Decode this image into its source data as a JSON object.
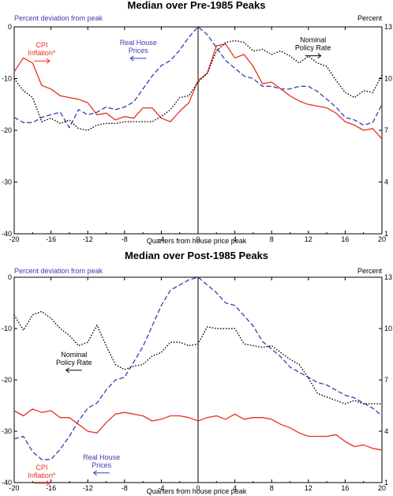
{
  "chart_data": [
    {
      "type": "line",
      "title": "Median over Pre-1985 Peaks",
      "xlabel": "Quarters from house price peak",
      "ylabel_left": "Percent deviation from peak",
      "ylabel_right": "Percent",
      "xlim": [
        -20,
        20
      ],
      "ylim_left": [
        -40,
        0
      ],
      "ylim_right": [
        1,
        13
      ],
      "x_ticks": [
        -20,
        -16,
        -12,
        -8,
        -4,
        0,
        4,
        8,
        12,
        16,
        20
      ],
      "y_ticks_left": [
        0,
        -10,
        -20,
        -30,
        -40
      ],
      "y_ticks_right": [
        13,
        10,
        7,
        4,
        1
      ],
      "vline_x": 0,
      "series": [
        {
          "name": "Real House Prices",
          "axis": "left",
          "style": "dashed",
          "color": "#3b3bb3",
          "x": [
            -20,
            -19,
            -18,
            -17,
            -16,
            -15,
            -14,
            -13,
            -12,
            -11,
            -10,
            -9,
            -8,
            -7,
            -6,
            -5,
            -4,
            -3,
            -2,
            -1,
            0,
            1,
            2,
            3,
            4,
            5,
            6,
            7,
            8,
            9,
            10,
            11,
            12,
            13,
            14,
            15,
            16,
            17,
            18,
            19,
            20
          ],
          "y": [
            -17.5,
            -18.5,
            -18.5,
            -17.5,
            -17.0,
            -16.5,
            -19.5,
            -16.0,
            -17.0,
            -16.5,
            -15.5,
            -16.0,
            -15.5,
            -14.5,
            -12.0,
            -9.5,
            -7.5,
            -6.5,
            -4.5,
            -2.0,
            0.0,
            -1.5,
            -4.0,
            -6.5,
            -8.0,
            -9.5,
            -10.0,
            -11.5,
            -11.5,
            -12.0,
            -12.0,
            -11.5,
            -11.5,
            -12.5,
            -14.0,
            -15.5,
            -17.5,
            -18.0,
            -19.0,
            -18.5,
            -15.0
          ]
        },
        {
          "name": "CPI Inflation*",
          "axis": "right",
          "style": "solid",
          "color": "#e8321e",
          "x": [
            -20,
            -19,
            -18,
            -17,
            -16,
            -15,
            -14,
            -13,
            -12,
            -11,
            -10,
            -9,
            -8,
            -7,
            -6,
            -5,
            -4,
            -3,
            -2,
            -1,
            0,
            1,
            2,
            3,
            4,
            5,
            6,
            7,
            8,
            9,
            10,
            11,
            12,
            13,
            14,
            15,
            16,
            17,
            18,
            19,
            20
          ],
          "y": [
            10.4,
            11.2,
            10.9,
            9.6,
            9.4,
            9.0,
            8.9,
            8.8,
            8.6,
            7.9,
            8.0,
            7.6,
            7.8,
            7.7,
            8.3,
            8.3,
            7.7,
            7.5,
            8.1,
            8.6,
            9.9,
            10.3,
            11.9,
            12.0,
            11.2,
            11.4,
            10.7,
            9.7,
            9.8,
            9.4,
            9.0,
            8.7,
            8.5,
            8.4,
            8.3,
            8.0,
            7.5,
            7.3,
            7.0,
            7.1,
            6.5
          ]
        },
        {
          "name": "Nominal Policy Rate",
          "axis": "right",
          "style": "dotted",
          "color": "#000000",
          "x": [
            -20,
            -19,
            -18,
            -17,
            -16,
            -15,
            -14,
            -13,
            -12,
            -11,
            -10,
            -9,
            -8,
            -7,
            -6,
            -5,
            -4,
            -3,
            -2,
            -1,
            0,
            1,
            2,
            3,
            4,
            5,
            6,
            7,
            8,
            9,
            10,
            11,
            12,
            13,
            14,
            15,
            16,
            17,
            18,
            19,
            20
          ],
          "y": [
            10.0,
            9.3,
            8.9,
            7.5,
            7.7,
            7.4,
            7.6,
            7.1,
            7.0,
            7.3,
            7.4,
            7.4,
            7.5,
            7.5,
            7.5,
            7.5,
            7.8,
            8.2,
            8.9,
            9.0,
            9.8,
            10.3,
            11.6,
            12.1,
            12.2,
            12.1,
            11.6,
            11.7,
            11.4,
            11.6,
            11.3,
            10.9,
            11.3,
            10.9,
            10.7,
            9.9,
            9.2,
            8.9,
            9.3,
            9.2,
            10.2
          ]
        }
      ],
      "annotations": [
        {
          "text_lines": [
            "CPI",
            "Inflation*"
          ],
          "color": "#e8321e",
          "arrow": "right",
          "x": -17,
          "y_left": -4.0
        },
        {
          "text_lines": [
            "Real House",
            "Prices"
          ],
          "color": "#3b3bb3",
          "arrow": "left",
          "x": -6.5,
          "y_left": -3.5
        },
        {
          "text_lines": [
            "Nominal",
            "Policy Rate"
          ],
          "color": "#000000",
          "arrow": "right",
          "x": 12.5,
          "y_left": -3.0
        }
      ]
    },
    {
      "type": "line",
      "title": "Median over Post-1985 Peaks",
      "xlabel": "Quarters from house price peak",
      "ylabel_left": "Percent deviation from peak",
      "ylabel_right": "Percent",
      "xlim": [
        -20,
        20
      ],
      "ylim_left": [
        -40,
        0
      ],
      "ylim_right": [
        1,
        13
      ],
      "x_ticks": [
        -20,
        -16,
        -12,
        -8,
        -4,
        0,
        4,
        8,
        12,
        16,
        20
      ],
      "y_ticks_left": [
        0,
        -10,
        -20,
        -30,
        -40
      ],
      "y_ticks_right": [
        13,
        10,
        7,
        4,
        1
      ],
      "vline_x": 0,
      "series": [
        {
          "name": "Real House Prices",
          "axis": "left",
          "style": "dashed",
          "color": "#3b3bb3",
          "x": [
            -20,
            -19,
            -18,
            -17,
            -16,
            -15,
            -14,
            -13,
            -12,
            -11,
            -10,
            -9,
            -8,
            -7,
            -6,
            -5,
            -4,
            -3,
            -2,
            -1,
            0,
            1,
            2,
            3,
            4,
            5,
            6,
            7,
            8,
            9,
            10,
            11,
            12,
            13,
            14,
            15,
            16,
            17,
            18,
            19,
            20
          ],
          "y": [
            -31.5,
            -31.0,
            -34.0,
            -35.5,
            -35.5,
            -33.5,
            -31.0,
            -28.0,
            -25.5,
            -24.5,
            -22.0,
            -20.0,
            -19.5,
            -16.5,
            -13.5,
            -9.5,
            -5.5,
            -2.5,
            -1.5,
            -0.5,
            0.0,
            -1.5,
            -3.0,
            -5.0,
            -5.5,
            -7.5,
            -9.5,
            -12.5,
            -14.0,
            -15.5,
            -17.5,
            -18.5,
            -19.5,
            -20.5,
            -21.0,
            -22.0,
            -23.0,
            -23.5,
            -24.5,
            -25.5,
            -27.0
          ]
        },
        {
          "name": "CPI Inflation*",
          "axis": "right",
          "style": "solid",
          "color": "#e8321e",
          "x": [
            -20,
            -19,
            -18,
            -17,
            -16,
            -15,
            -14,
            -13,
            -12,
            -11,
            -10,
            -9,
            -8,
            -7,
            -6,
            -5,
            -4,
            -3,
            -2,
            -1,
            0,
            1,
            2,
            3,
            4,
            5,
            6,
            7,
            8,
            9,
            10,
            11,
            12,
            13,
            14,
            15,
            16,
            17,
            18,
            19,
            20
          ],
          "y": [
            5.2,
            4.9,
            5.3,
            5.1,
            5.2,
            4.8,
            4.8,
            4.4,
            4.0,
            3.9,
            4.5,
            5.0,
            5.1,
            5.0,
            4.9,
            4.6,
            4.7,
            4.9,
            4.9,
            4.8,
            4.6,
            4.8,
            4.9,
            4.7,
            5.0,
            4.7,
            4.8,
            4.8,
            4.7,
            4.4,
            4.2,
            3.9,
            3.7,
            3.7,
            3.7,
            3.8,
            3.4,
            3.1,
            3.2,
            3.0,
            2.9
          ]
        },
        {
          "name": "Nominal Policy Rate",
          "axis": "right",
          "style": "dotted",
          "color": "#000000",
          "x": [
            -20,
            -19,
            -18,
            -17,
            -16,
            -15,
            -14,
            -13,
            -12,
            -11,
            -10,
            -9,
            -8,
            -7,
            -6,
            -5,
            -4,
            -3,
            -2,
            -1,
            0,
            1,
            2,
            3,
            4,
            5,
            6,
            7,
            8,
            9,
            10,
            11,
            12,
            13,
            14,
            15,
            16,
            17,
            18,
            19,
            20
          ],
          "y": [
            10.8,
            9.9,
            10.8,
            11.0,
            10.6,
            10.0,
            9.6,
            9.0,
            9.2,
            10.2,
            9.0,
            7.9,
            7.6,
            7.8,
            7.9,
            8.4,
            8.6,
            9.2,
            9.2,
            9.0,
            9.1,
            10.1,
            10.0,
            10.0,
            10.0,
            9.1,
            9.0,
            8.9,
            9.0,
            8.6,
            8.2,
            7.9,
            7.1,
            6.2,
            6.0,
            5.8,
            5.6,
            5.8,
            5.6,
            5.6,
            5.6
          ]
        }
      ],
      "annotations": [
        {
          "text_lines": [
            "Nominal",
            "Policy Rate"
          ],
          "color": "#000000",
          "arrow": "left",
          "x": -13.5,
          "y_left": -15.5
        },
        {
          "text_lines": [
            "Real House",
            "Prices"
          ],
          "color": "#3b3bb3",
          "arrow": "left",
          "x": -10.5,
          "y_left": -35.5
        },
        {
          "text_lines": [
            "CPI",
            "Inflation*"
          ],
          "color": "#e8321e",
          "arrow": "right",
          "x": -17,
          "y_left": -37.5
        }
      ]
    }
  ]
}
